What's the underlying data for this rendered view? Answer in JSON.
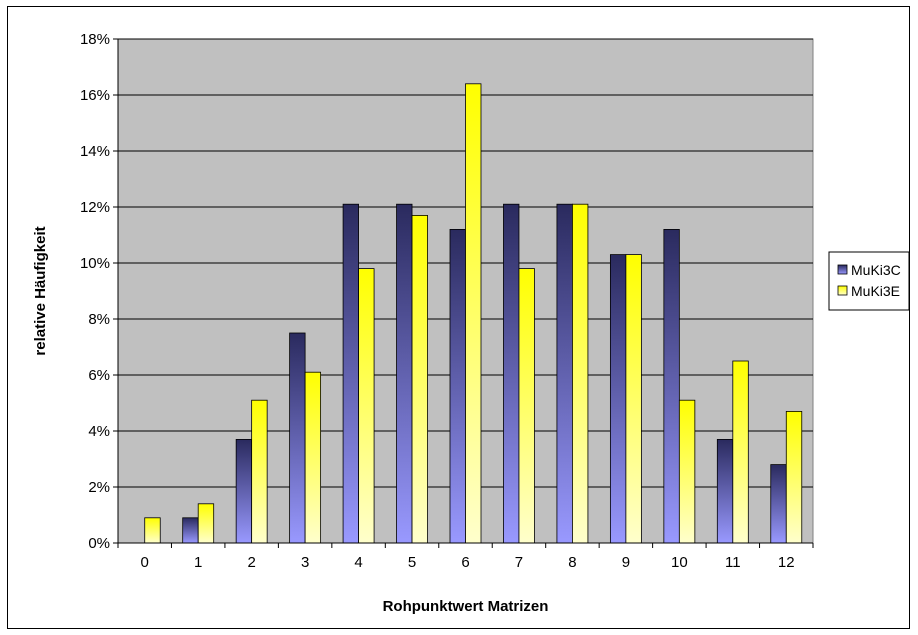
{
  "chart_data": {
    "type": "bar",
    "title": "",
    "xlabel": "Rohpunktwert Matrizen",
    "ylabel": "relative Häufigkeit",
    "categories": [
      "0",
      "1",
      "2",
      "3",
      "4",
      "5",
      "6",
      "7",
      "8",
      "9",
      "10",
      "11",
      "12"
    ],
    "series": [
      {
        "name": "MuKi3C",
        "values": [
          0,
          0.9,
          3.7,
          7.5,
          12.1,
          12.1,
          11.2,
          12.1,
          12.1,
          10.3,
          11.2,
          3.7,
          2.8
        ]
      },
      {
        "name": "MuKi3E",
        "values": [
          0.9,
          1.4,
          5.1,
          6.1,
          9.8,
          11.7,
          16.4,
          9.8,
          12.1,
          10.3,
          5.1,
          6.5,
          4.7
        ]
      }
    ],
    "ylim": [
      0,
      18
    ],
    "yticks": [
      "0%",
      "2%",
      "4%",
      "6%",
      "8%",
      "10%",
      "12%",
      "14%",
      "16%",
      "18%"
    ],
    "grid": true,
    "legend_position": "right"
  },
  "colors": {
    "plot_background": "#c0c0c0",
    "series_1_top": "#2a2a5e",
    "series_1_bottom": "#9999ff",
    "series_2_top": "#ffff00",
    "series_2_bottom": "#ffffcc"
  }
}
